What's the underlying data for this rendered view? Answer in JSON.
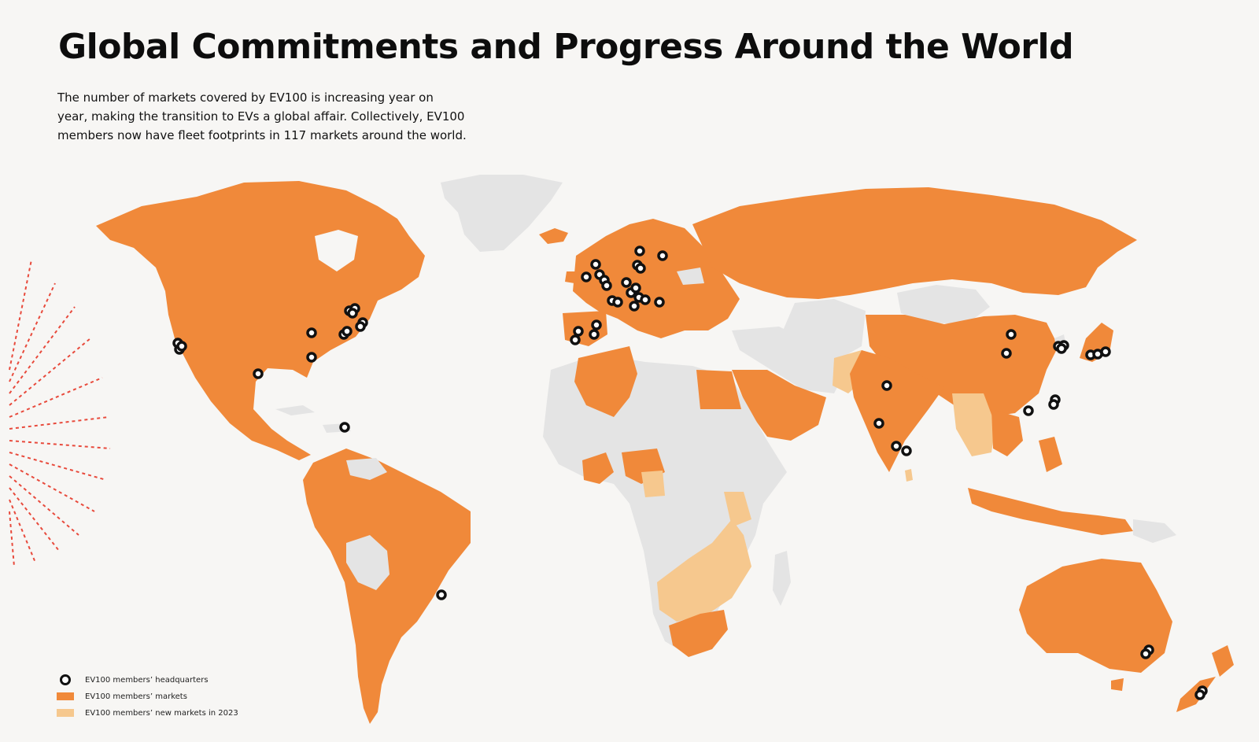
{
  "header": {
    "title": "Global Commitments and Progress Around the World",
    "intro_lines": [
      "The number of markets covered by EV100 is increasing year on",
      "year, making the transition to EVs a global affair. Collectively, EV100",
      "members now have fleet footprints in 117 markets around the world."
    ]
  },
  "legend": {
    "headquarters": "EV100 members’ headquarters",
    "markets": "EV100 members’ markets",
    "new_markets": "EV100 members’ new markets in 2023"
  },
  "colors": {
    "markets": "#f0893a",
    "new_markets": "#f6c88e",
    "other": "#e6e6e6",
    "background": "#f7f6f4",
    "accent_dashes": "#e84a3c"
  }
}
